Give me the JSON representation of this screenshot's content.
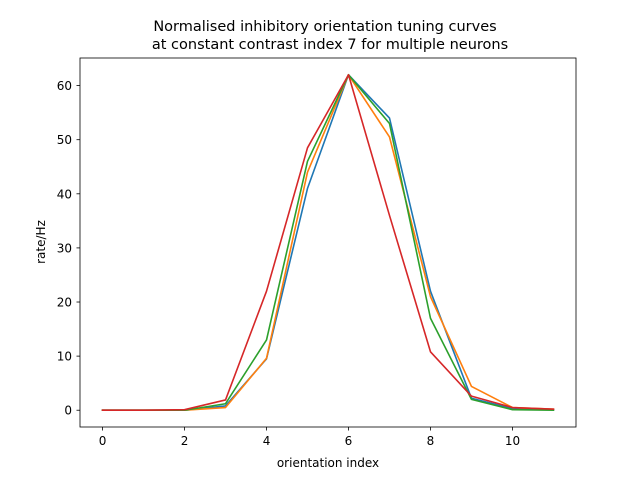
{
  "chart_data": {
    "type": "line",
    "title_line1": "Normalised inhibitory orientation tuning curves",
    "title_line2": "at constant contrast index 7 for multiple neurons",
    "xlabel": "orientation index",
    "ylabel": "rate/Hz",
    "xlim": [
      -0.55,
      11.55
    ],
    "ylim": [
      -3.1,
      65.1
    ],
    "xticks": [
      0,
      2,
      4,
      6,
      8,
      10
    ],
    "yticks": [
      0,
      10,
      20,
      30,
      40,
      50,
      60
    ],
    "x": [
      0,
      1,
      2,
      3,
      4,
      5,
      6,
      7,
      8,
      9,
      10,
      11
    ],
    "series": [
      {
        "color": "#1f77b4",
        "values": [
          0,
          0,
          0,
          0.8,
          9.5,
          41,
          62,
          54,
          22,
          2.2,
          0.3,
          0.1
        ]
      },
      {
        "color": "#ff7f0e",
        "values": [
          0,
          0,
          0,
          0.5,
          9.6,
          44,
          62,
          50.5,
          21,
          4.4,
          0.5,
          0.2
        ]
      },
      {
        "color": "#2ca02c",
        "values": [
          0,
          0,
          0,
          1.2,
          13,
          46,
          62,
          53,
          17,
          2,
          0.1,
          0
        ]
      },
      {
        "color": "#d62728",
        "values": [
          0,
          0,
          0.1,
          1.9,
          22,
          48.5,
          62,
          36,
          10.8,
          2.6,
          0.5,
          0.2
        ]
      }
    ]
  }
}
